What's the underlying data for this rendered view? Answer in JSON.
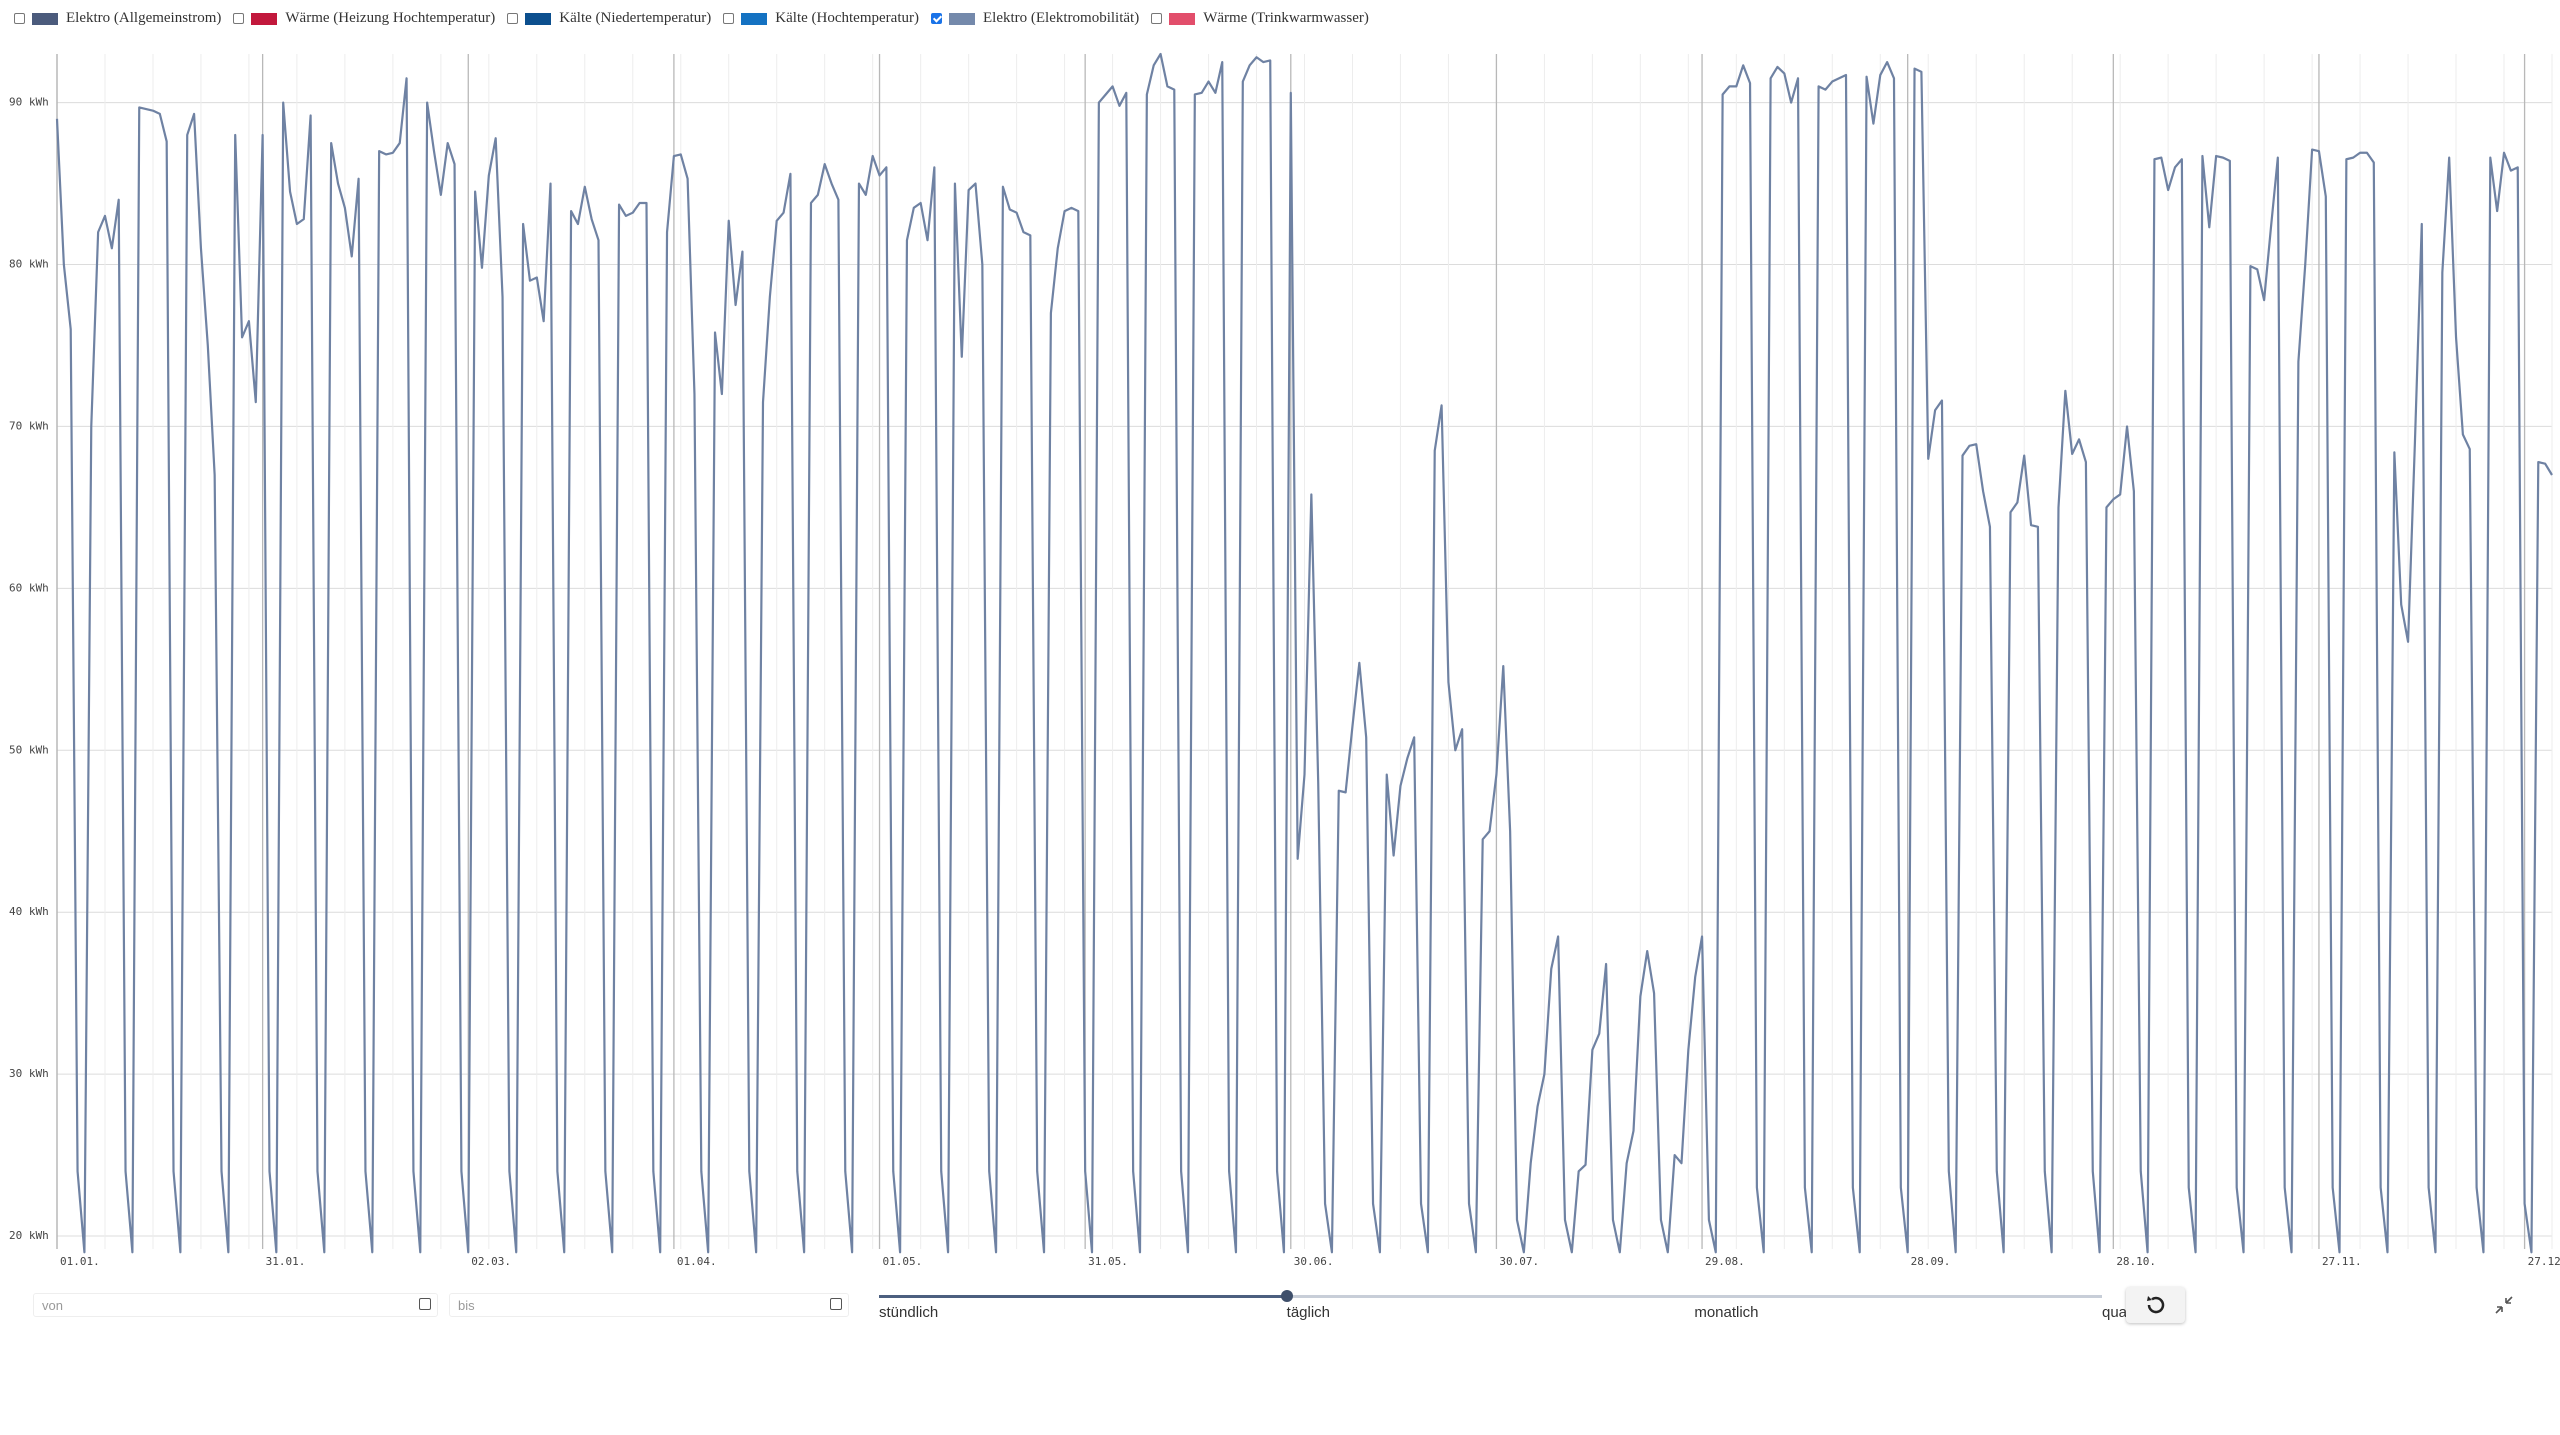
{
  "legend": {
    "items": [
      {
        "label": "Elektro (Allgemeinstrom)",
        "color": "#4b5b7c",
        "checked": false
      },
      {
        "label": "Wärme (Heizung Hochtemperatur)",
        "color": "#c2183c",
        "checked": false
      },
      {
        "label": "Kälte (Niedertemperatur)",
        "color": "#0c4f8e",
        "checked": false
      },
      {
        "label": "Kälte (Hochtemperatur)",
        "color": "#1472c2",
        "checked": false
      },
      {
        "label": "Elektro (Elektromobilität)",
        "color": "#7489ab",
        "checked": true
      },
      {
        "label": "Wärme (Trinkwarmwasser)",
        "color": "#e24e6b",
        "checked": false
      }
    ]
  },
  "chart_data": {
    "type": "line",
    "categories": [
      "01.01.",
      null,
      null,
      null,
      null,
      null,
      null,
      null,
      null,
      null,
      null,
      null,
      null,
      null,
      null,
      null,
      null,
      null,
      null,
      null,
      null,
      null,
      null,
      null,
      null,
      null,
      null,
      null,
      null,
      null,
      "31.01.",
      null,
      null,
      null,
      null,
      null,
      null,
      null,
      null,
      null,
      null,
      null,
      null,
      null,
      null,
      null,
      null,
      null,
      null,
      null,
      null,
      null,
      null,
      null,
      null,
      null,
      null,
      null,
      null,
      null,
      "02.03.",
      null,
      null,
      null,
      null,
      null,
      null,
      null,
      null,
      null,
      null,
      null,
      null,
      null,
      null,
      null,
      null,
      null,
      null,
      null,
      null,
      null,
      null,
      null,
      null,
      null,
      null,
      null,
      null,
      null,
      "01.04.",
      null,
      null,
      null,
      null,
      null,
      null,
      null,
      null,
      null,
      null,
      null,
      null,
      null,
      null,
      null,
      null,
      null,
      null,
      null,
      null,
      null,
      null,
      null,
      null,
      null,
      null,
      null,
      null,
      null,
      "01.05.",
      null,
      null,
      null,
      null,
      null,
      null,
      null,
      null,
      null,
      null,
      null,
      null,
      null,
      null,
      null,
      null,
      null,
      null,
      null,
      null,
      null,
      null,
      null,
      null,
      null,
      null,
      null,
      null,
      null,
      "31.05.",
      null,
      null,
      null,
      null,
      null,
      null,
      null,
      null,
      null,
      null,
      null,
      null,
      null,
      null,
      null,
      null,
      null,
      null,
      null,
      null,
      null,
      null,
      null,
      null,
      null,
      null,
      null,
      null,
      null,
      "30.06.",
      null,
      null,
      null,
      null,
      null,
      null,
      null,
      null,
      null,
      null,
      null,
      null,
      null,
      null,
      null,
      null,
      null,
      null,
      null,
      null,
      null,
      null,
      null,
      null,
      null,
      null,
      null,
      null,
      null,
      "30.07.",
      null,
      null,
      null,
      null,
      null,
      null,
      null,
      null,
      null,
      null,
      null,
      null,
      null,
      null,
      null,
      null,
      null,
      null,
      null,
      null,
      null,
      null,
      null,
      null,
      null,
      null,
      null,
      null,
      null,
      "29.08.",
      null,
      null,
      null,
      null,
      null,
      null,
      null,
      null,
      null,
      null,
      null,
      null,
      null,
      null,
      null,
      null,
      null,
      null,
      null,
      null,
      null,
      null,
      null,
      null,
      null,
      null,
      null,
      null,
      null,
      "28.09.",
      null,
      null,
      null,
      null,
      null,
      null,
      null,
      null,
      null,
      null,
      null,
      null,
      null,
      null,
      null,
      null,
      null,
      null,
      null,
      null,
      null,
      null,
      null,
      null,
      null,
      null,
      null,
      null,
      null,
      "28.10.",
      null,
      null,
      null,
      null,
      null,
      null,
      null,
      null,
      null,
      null,
      null,
      null,
      null,
      null,
      null,
      null,
      null,
      null,
      null,
      null,
      null,
      null,
      null,
      null,
      null,
      null,
      null,
      null,
      null,
      "27.11.",
      null,
      null,
      null,
      null,
      null,
      null,
      null,
      null,
      null,
      null,
      null,
      null,
      null,
      null,
      null,
      null,
      null,
      null,
      null,
      null,
      null,
      null,
      null,
      null,
      null,
      null,
      null,
      null,
      null,
      "27.12.",
      null,
      null,
      null,
      null
    ],
    "series": [
      {
        "color": "#6f82a3",
        "values": [
          89,
          80,
          76,
          24,
          19,
          70,
          82,
          83,
          81,
          84,
          24,
          19,
          89.7,
          89.6,
          89.5,
          89.3,
          87.6,
          24,
          19,
          88,
          89.3,
          81,
          75,
          67,
          24,
          19,
          88,
          75.5,
          76.5,
          71.5,
          88,
          24,
          19,
          90,
          84.5,
          82.5,
          82.8,
          89.2,
          24,
          19,
          87.5,
          85,
          83.5,
          80.5,
          85.3,
          24,
          19,
          87,
          86.8,
          86.9,
          87.5,
          91.5,
          24,
          19,
          90,
          87,
          84.3,
          87.5,
          86.2,
          24,
          19,
          84.5,
          79.8,
          85.5,
          87.8,
          78,
          24,
          19,
          82.5,
          79,
          79.2,
          76.5,
          85,
          24,
          19,
          83.3,
          82.5,
          84.8,
          82.8,
          81.5,
          24,
          19,
          83.7,
          83,
          83.2,
          83.8,
          83.8,
          24,
          19,
          82,
          86.7,
          86.8,
          85.3,
          72,
          24,
          19,
          75.8,
          72,
          82.7,
          77.5,
          80.8,
          24,
          19,
          71.5,
          78,
          82.7,
          83.2,
          85.6,
          24,
          19,
          83.8,
          84.3,
          86.2,
          85,
          84,
          24,
          19,
          85,
          84.3,
          86.7,
          85.5,
          86,
          24,
          19,
          81.5,
          83.5,
          83.8,
          81.5,
          86,
          24,
          19,
          85,
          74.3,
          84.6,
          85,
          80,
          24,
          19,
          84.8,
          83.4,
          83.2,
          82,
          81.8,
          24,
          19,
          77,
          81,
          83.3,
          83.5,
          83.3,
          24,
          19,
          90,
          90.5,
          91,
          89.8,
          90.6,
          24,
          19,
          90.5,
          92.3,
          93,
          91,
          90.8,
          24,
          19,
          90.5,
          90.6,
          91.3,
          90.6,
          92.5,
          24,
          19,
          91.3,
          92.3,
          92.8,
          92.5,
          92.6,
          24,
          19,
          90.6,
          43.3,
          48.5,
          65.8,
          48,
          22,
          19,
          47.5,
          47.4,
          51.5,
          55.4,
          50.8,
          22,
          19,
          48.5,
          43.5,
          47.8,
          49.5,
          50.8,
          22,
          19,
          68.5,
          71.3,
          54.2,
          50,
          51.3,
          22,
          19,
          44.5,
          45,
          48.5,
          55.2,
          45,
          21,
          19,
          24.5,
          28,
          30,
          36.5,
          38.5,
          21,
          19,
          24,
          24.4,
          31.5,
          32.5,
          36.8,
          21,
          19,
          24.5,
          26.5,
          34.8,
          37.6,
          35,
          21,
          19,
          25,
          24.5,
          31.5,
          36,
          38.5,
          21,
          19,
          90.5,
          91,
          91,
          92.3,
          91.2,
          23,
          19,
          91.5,
          92.2,
          91.8,
          90,
          91.5,
          23,
          19,
          91,
          90.8,
          91.3,
          91.5,
          91.7,
          23,
          19,
          91.6,
          88.7,
          91.7,
          92.5,
          91.5,
          23,
          19,
          92.1,
          91.9,
          68,
          71,
          71.6,
          24,
          19,
          68.2,
          68.8,
          68.9,
          66,
          63.8,
          24,
          19,
          64.7,
          65.3,
          68.2,
          63.9,
          63.8,
          24,
          19,
          65,
          72.2,
          68.3,
          69.2,
          67.8,
          24,
          19,
          65,
          65.5,
          65.8,
          70,
          66,
          24,
          19,
          86.5,
          86.6,
          84.6,
          86,
          86.5,
          23,
          19,
          86.7,
          82.3,
          86.7,
          86.6,
          86.4,
          23,
          19,
          79.9,
          79.7,
          77.8,
          82.3,
          86.6,
          23,
          19,
          74,
          80,
          87.1,
          87,
          84.2,
          23,
          19,
          86.5,
          86.6,
          86.9,
          86.9,
          86.3,
          23,
          19,
          68.4,
          59,
          56.7,
          69,
          82.5,
          23,
          19,
          79.5,
          86.6,
          75.5,
          69.5,
          68.6,
          23,
          19,
          86.6,
          83.3,
          86.9,
          85.8,
          86,
          22,
          19,
          67.8,
          67.7,
          67
        ]
      }
    ],
    "ylim": [
      19.2,
      93
    ],
    "yticks": [
      {
        "value": 20,
        "label": "20 kWh"
      },
      {
        "value": 30,
        "label": "30 kWh"
      },
      {
        "value": 40,
        "label": "40 kWh"
      },
      {
        "value": 50,
        "label": "50 kWh"
      },
      {
        "value": 60,
        "label": "60 kWh"
      },
      {
        "value": 70,
        "label": "70 kWh"
      },
      {
        "value": 80,
        "label": "80 kWh"
      },
      {
        "value": 90,
        "label": "90 kWh"
      }
    ],
    "grid": true
  },
  "controls": {
    "from_placeholder": "von",
    "to_placeholder": "bis",
    "resolutions": [
      "stündlich",
      "täglich",
      "monatlich",
      "quar"
    ],
    "selected_resolution": 1
  }
}
